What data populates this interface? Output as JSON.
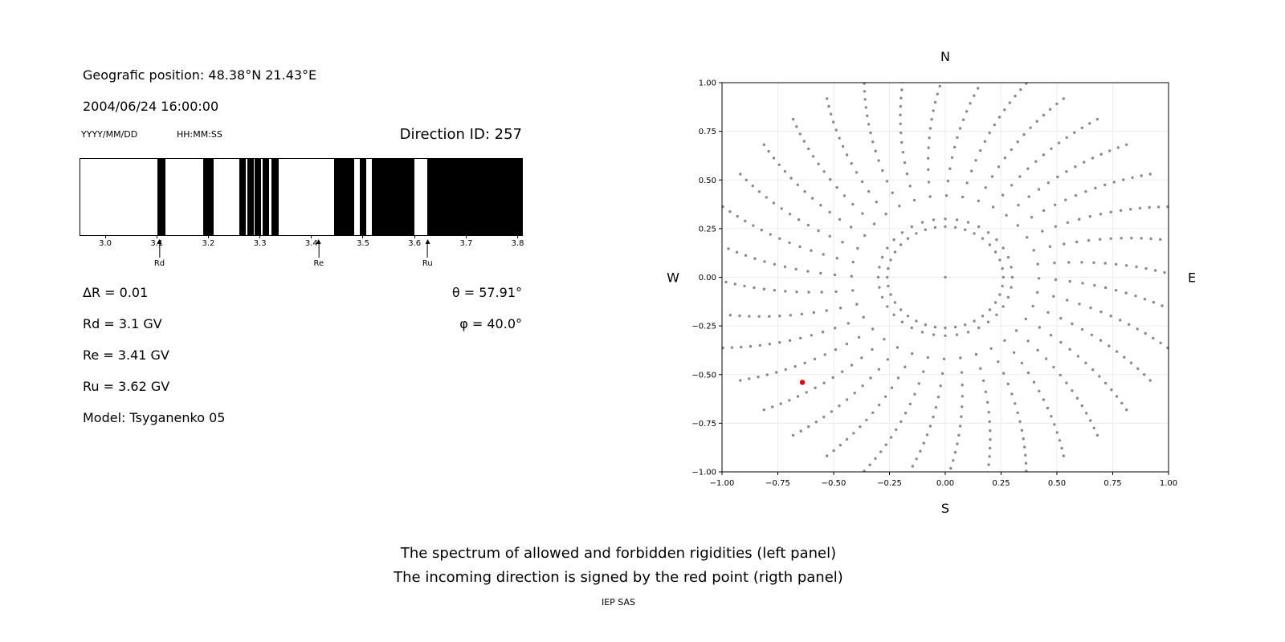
{
  "header": {
    "geo_position": "Geografic position: 48.38°N 21.43°E",
    "datetime": "2004/06/24 16:00:00",
    "date_format_label": "YYYY/MM/DD",
    "time_format_label": "HH:MM:SS",
    "direction_id": "Direction ID: 257"
  },
  "parameters": {
    "delta_r": "ΔR = 0.01",
    "rd": "Rd = 3.1 GV",
    "re": "Re = 3.41 GV",
    "ru": "Ru = 3.62 GV",
    "model": "Model: Tsyganenko 05",
    "theta": "θ = 57.91°",
    "phi": "φ = 40.0°"
  },
  "captions": {
    "line1": "The spectrum of allowed and forbidden rigidities (left panel)",
    "line2": "The incoming direction is signed by the red point (rigth panel)",
    "credit": "IEP SAS"
  },
  "chart_data": [
    {
      "name": "rigidity_spectrum",
      "type": "bar",
      "description": "Cutoff rigidity spectrum: black intervals = allowed rigidities, white = forbidden; penumbra between Rd and Ru",
      "xlim": [
        2.95,
        3.81
      ],
      "xticks": [
        3.0,
        3.1,
        3.2,
        3.3,
        3.4,
        3.5,
        3.6,
        3.7,
        3.8
      ],
      "bar_color": "#000000",
      "delta_r_gv": 0.01,
      "allowed_intervals_gv": [
        [
          3.1,
          3.115
        ],
        [
          3.19,
          3.21
        ],
        [
          3.26,
          3.272
        ],
        [
          3.275,
          3.288
        ],
        [
          3.29,
          3.302
        ],
        [
          3.305,
          3.318
        ],
        [
          3.322,
          3.336
        ],
        [
          3.444,
          3.483
        ],
        [
          3.494,
          3.507
        ],
        [
          3.517,
          3.6
        ],
        [
          3.626,
          3.81
        ]
      ],
      "markers": [
        {
          "label": "Rd",
          "value_gv": 3.105
        },
        {
          "label": "Re",
          "value_gv": 3.414
        },
        {
          "label": "Ru",
          "value_gv": 3.625
        }
      ]
    },
    {
      "name": "incoming_direction",
      "type": "scatter",
      "description": "Sky map of viewing directions (gray dots); red point marks the incoming direction",
      "xlim": [
        -1.0,
        1.0
      ],
      "ylim": [
        -1.0,
        1.0
      ],
      "xticks": [
        -1.0,
        -0.75,
        -0.5,
        -0.25,
        0,
        0.25,
        0.5,
        0.75,
        1.0
      ],
      "yticks": [
        -1.0,
        -0.75,
        -0.5,
        -0.25,
        0,
        0.25,
        0.5,
        0.75,
        1.0
      ],
      "grid": true,
      "cardinal_labels": {
        "top": "N",
        "right": "E",
        "bottom": "S",
        "left": "W"
      },
      "dot_color": "#8a8a8a",
      "red_point": {
        "x": -0.64,
        "y": -0.54,
        "color": "#e60000"
      },
      "direction_grid_pattern": {
        "spokes": 36,
        "spoke_start_deg": 0,
        "spoke_r_min": 0.3,
        "spoke_r_max": 1.06,
        "points_per_spoke": 14,
        "density_exponent": 0.7,
        "curve_deg": 10,
        "inner_ring_radius": 0.26,
        "inner_ring_points": 36,
        "center_point": true
      }
    }
  ]
}
